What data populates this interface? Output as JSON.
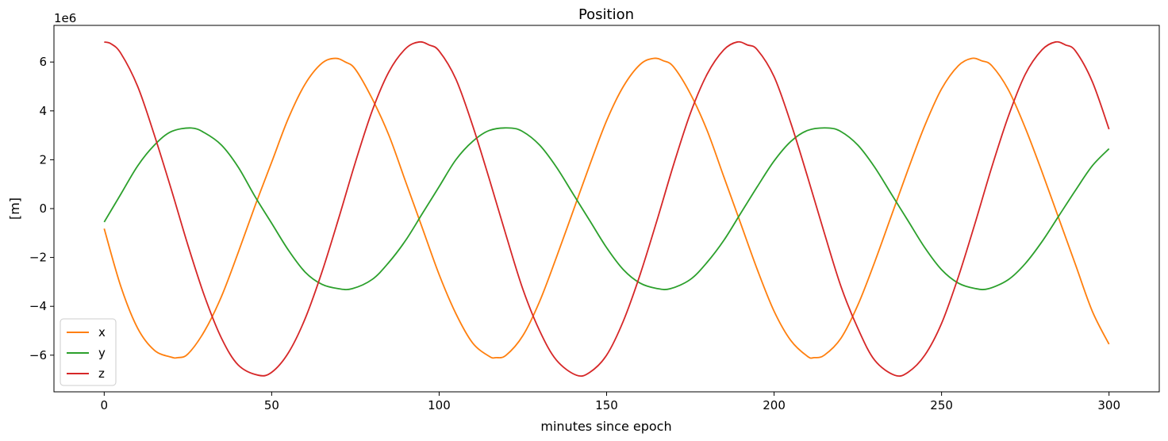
{
  "chart_data": {
    "type": "line",
    "title": "Position",
    "xlabel": "minutes since epoch",
    "ylabel": "[m]",
    "y_offset_label": "1e6",
    "xlim": [
      -15,
      315
    ],
    "ylim": [
      -7.5,
      7.5
    ],
    "y_scale_factor": 1000000,
    "xticks": [
      0,
      50,
      100,
      150,
      200,
      250,
      300
    ],
    "yticks": [
      -6,
      -4,
      -2,
      0,
      2,
      4,
      6
    ],
    "ytick_labels": [
      "−6",
      "−4",
      "−2",
      "0",
      "2",
      "4",
      "6"
    ],
    "grid": false,
    "legend_position": "lower-left",
    "series": [
      {
        "name": "x",
        "color": "#ff7f0e",
        "x": [
          0,
          5,
          10,
          15,
          20,
          22,
          25,
          30,
          35,
          40,
          45,
          50,
          55,
          60,
          65,
          69,
          72,
          75,
          80,
          85,
          90,
          95,
          100,
          105,
          110,
          115,
          117,
          120,
          125,
          130,
          135,
          140,
          145,
          150,
          155,
          160,
          164,
          167,
          170,
          175,
          180,
          185,
          190,
          195,
          200,
          205,
          210,
          212,
          215,
          220,
          225,
          230,
          235,
          240,
          245,
          250,
          255,
          259,
          262,
          265,
          270,
          275,
          280,
          285,
          290,
          295,
          300
        ],
        "y": [
          -0.82,
          -3.2,
          -4.9,
          -5.8,
          -6.08,
          -6.1,
          -5.95,
          -5.0,
          -3.6,
          -1.8,
          0.1,
          1.9,
          3.7,
          5.1,
          5.95,
          6.15,
          6.0,
          5.7,
          4.5,
          3.0,
          1.1,
          -0.8,
          -2.7,
          -4.3,
          -5.5,
          -6.05,
          -6.1,
          -6.0,
          -5.2,
          -3.8,
          -2.0,
          -0.1,
          1.8,
          3.6,
          5.0,
          5.9,
          6.15,
          6.05,
          5.8,
          4.7,
          3.2,
          1.3,
          -0.6,
          -2.5,
          -4.2,
          -5.4,
          -6.05,
          -6.1,
          -6.0,
          -5.3,
          -3.95,
          -2.2,
          -0.3,
          1.6,
          3.4,
          4.9,
          5.85,
          6.15,
          6.05,
          5.85,
          4.85,
          3.3,
          1.5,
          -0.4,
          -2.3,
          -4.2,
          -5.55
        ]
      },
      {
        "name": "y",
        "color": "#2ca02c",
        "x": [
          0,
          5,
          10,
          15,
          20,
          26,
          30,
          35,
          40,
          45,
          50,
          55,
          60,
          65,
          70,
          74,
          80,
          85,
          90,
          95,
          100,
          105,
          110,
          115,
          121,
          125,
          130,
          135,
          140,
          145,
          150,
          155,
          160,
          165,
          169,
          175,
          180,
          185,
          190,
          195,
          200,
          205,
          210,
          216,
          220,
          225,
          230,
          235,
          240,
          245,
          250,
          255,
          260,
          264,
          270,
          275,
          280,
          285,
          290,
          295,
          300
        ],
        "y": [
          -0.55,
          0.6,
          1.75,
          2.6,
          3.15,
          3.3,
          3.1,
          2.6,
          1.7,
          0.5,
          -0.6,
          -1.7,
          -2.6,
          -3.1,
          -3.28,
          -3.28,
          -2.9,
          -2.2,
          -1.3,
          -0.2,
          0.9,
          2.0,
          2.75,
          3.2,
          3.3,
          3.15,
          2.6,
          1.7,
          0.6,
          -0.5,
          -1.6,
          -2.5,
          -3.05,
          -3.27,
          -3.28,
          -2.9,
          -2.2,
          -1.3,
          -0.2,
          0.9,
          1.95,
          2.75,
          3.2,
          3.3,
          3.15,
          2.6,
          1.7,
          0.6,
          -0.5,
          -1.6,
          -2.5,
          -3.05,
          -3.27,
          -3.28,
          -2.9,
          -2.25,
          -1.35,
          -0.3,
          0.75,
          1.75,
          2.45
        ]
      },
      {
        "name": "z",
        "color": "#d62728",
        "x": [
          0,
          2,
          5,
          10,
          15,
          20,
          25,
          30,
          35,
          40,
          46,
          50,
          55,
          60,
          65,
          70,
          75,
          80,
          85,
          90,
          94,
          97,
          100,
          105,
          110,
          115,
          120,
          125,
          130,
          135,
          141,
          145,
          150,
          155,
          160,
          165,
          170,
          175,
          180,
          185,
          189,
          192,
          195,
          200,
          205,
          210,
          215,
          220,
          225,
          230,
          236,
          240,
          245,
          250,
          255,
          260,
          265,
          270,
          275,
          280,
          284,
          287,
          290,
          295,
          300
        ],
        "y": [
          6.82,
          6.75,
          6.35,
          5.0,
          3.0,
          0.8,
          -1.5,
          -3.6,
          -5.3,
          -6.4,
          -6.82,
          -6.7,
          -5.9,
          -4.5,
          -2.6,
          -0.4,
          1.9,
          4.0,
          5.6,
          6.55,
          6.82,
          6.7,
          6.45,
          5.3,
          3.4,
          1.2,
          -1.1,
          -3.3,
          -5.0,
          -6.2,
          -6.82,
          -6.7,
          -6.0,
          -4.6,
          -2.7,
          -0.5,
          1.8,
          3.9,
          5.5,
          6.5,
          6.82,
          6.7,
          6.5,
          5.4,
          3.5,
          1.3,
          -1.0,
          -3.2,
          -4.9,
          -6.2,
          -6.82,
          -6.7,
          -6.0,
          -4.7,
          -2.8,
          -0.6,
          1.7,
          3.8,
          5.5,
          6.5,
          6.82,
          6.7,
          6.45,
          5.2,
          3.25
        ]
      }
    ]
  }
}
